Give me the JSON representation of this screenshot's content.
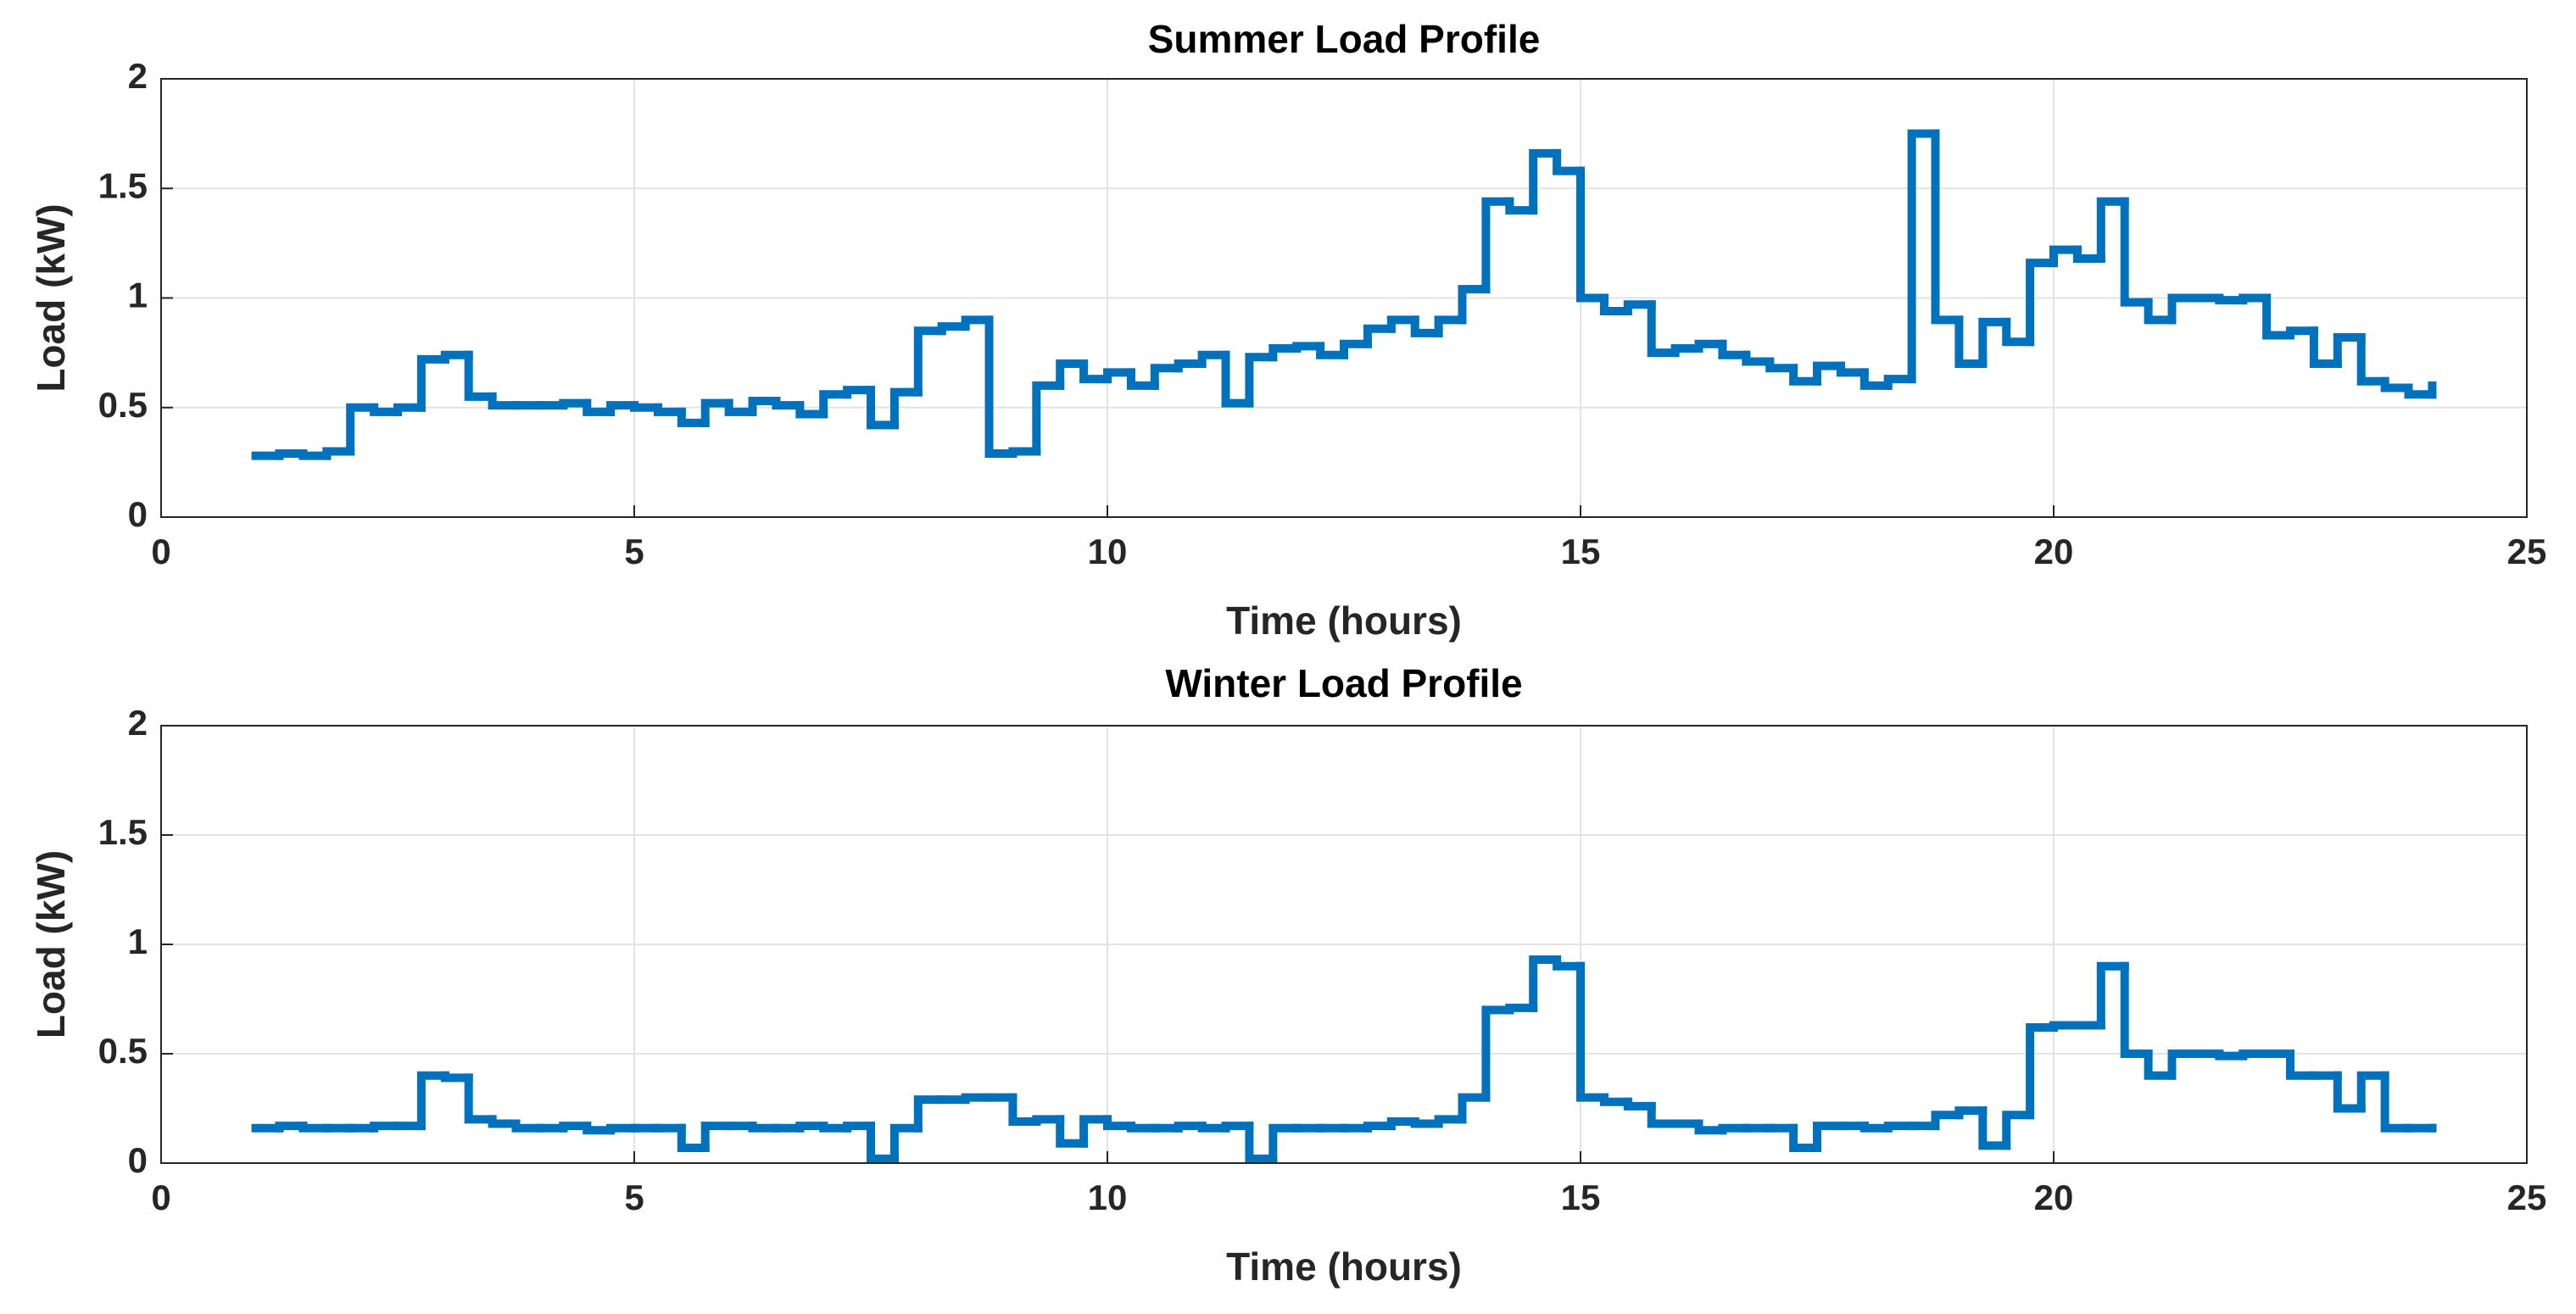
{
  "chart_data": [
    {
      "type": "step",
      "title": "Summer Load Profile",
      "xlabel": "Time (hours)",
      "ylabel": "Load (kW)",
      "x": [
        1,
        1.25,
        1.5,
        1.75,
        2,
        2.25,
        2.5,
        2.75,
        3,
        3.25,
        3.5,
        3.75,
        4,
        4.25,
        4.5,
        4.75,
        5,
        5.25,
        5.5,
        5.75,
        6,
        6.25,
        6.5,
        6.75,
        7,
        7.25,
        7.5,
        7.75,
        8,
        8.25,
        8.5,
        8.75,
        9,
        9.25,
        9.5,
        9.75,
        10,
        10.25,
        10.5,
        10.75,
        11,
        11.25,
        11.5,
        11.75,
        12,
        12.25,
        12.5,
        12.75,
        13,
        13.25,
        13.5,
        13.75,
        14,
        14.25,
        14.5,
        14.75,
        15,
        15.25,
        15.5,
        15.75,
        16,
        16.25,
        16.5,
        16.75,
        17,
        17.25,
        17.5,
        17.75,
        18,
        18.25,
        18.5,
        18.75,
        19,
        19.25,
        19.5,
        19.75,
        20,
        20.25,
        20.5,
        20.75,
        21,
        21.25,
        21.5,
        21.75,
        22,
        22.25,
        22.5,
        22.75,
        23,
        23.25,
        23.5,
        23.75,
        24
      ],
      "values": [
        0.28,
        0.29,
        0.28,
        0.3,
        0.5,
        0.48,
        0.5,
        0.72,
        0.74,
        0.55,
        0.51,
        0.51,
        0.51,
        0.52,
        0.48,
        0.51,
        0.5,
        0.48,
        0.43,
        0.52,
        0.48,
        0.53,
        0.51,
        0.47,
        0.56,
        0.58,
        0.42,
        0.57,
        0.85,
        0.87,
        0.9,
        0.29,
        0.3,
        0.6,
        0.7,
        0.63,
        0.66,
        0.6,
        0.68,
        0.7,
        0.74,
        0.52,
        0.73,
        0.77,
        0.78,
        0.74,
        0.79,
        0.86,
        0.9,
        0.84,
        0.9,
        1.04,
        1.44,
        1.4,
        1.66,
        1.58,
        1.0,
        0.94,
        0.97,
        0.75,
        0.77,
        0.79,
        0.74,
        0.71,
        0.68,
        0.62,
        0.69,
        0.66,
        0.6,
        0.63,
        1.75,
        0.9,
        0.7,
        0.89,
        0.8,
        1.16,
        1.22,
        1.18,
        1.44,
        0.98,
        0.9,
        1.0,
        1.0,
        0.99,
        1.0,
        0.83,
        0.85,
        0.7,
        0.82,
        0.62,
        0.59,
        0.56,
        0.6
      ],
      "color": "#0072bd",
      "xlim": [
        0,
        25
      ],
      "xticks": [
        0,
        5,
        10,
        15,
        20,
        25
      ],
      "ylim": [
        0,
        2
      ],
      "yticks": [
        0,
        0.5,
        1,
        1.5,
        2
      ],
      "grid": true
    },
    {
      "type": "step",
      "title": "Winter Load Profile",
      "xlabel": "Time (hours)",
      "ylabel": "Load (kW)",
      "x": [
        1,
        1.25,
        1.5,
        1.75,
        2,
        2.25,
        2.5,
        2.75,
        3,
        3.25,
        3.5,
        3.75,
        4,
        4.25,
        4.5,
        4.75,
        5,
        5.25,
        5.5,
        5.75,
        6,
        6.25,
        6.5,
        6.75,
        7,
        7.25,
        7.5,
        7.75,
        8,
        8.25,
        8.5,
        8.75,
        9,
        9.25,
        9.5,
        9.75,
        10,
        10.25,
        10.5,
        10.75,
        11,
        11.25,
        11.5,
        11.75,
        12,
        12.25,
        12.5,
        12.75,
        13,
        13.25,
        13.5,
        13.75,
        14,
        14.25,
        14.5,
        14.75,
        15,
        15.25,
        15.5,
        15.75,
        16,
        16.25,
        16.5,
        16.75,
        17,
        17.25,
        17.5,
        17.75,
        18,
        18.25,
        18.5,
        18.75,
        19,
        19.25,
        19.5,
        19.75,
        20,
        20.25,
        20.5,
        20.75,
        21,
        21.25,
        21.5,
        21.75,
        22,
        22.25,
        22.5,
        22.75,
        23,
        23.25,
        23.5,
        23.75,
        24
      ],
      "values": [
        0.16,
        0.17,
        0.16,
        0.16,
        0.16,
        0.17,
        0.17,
        0.4,
        0.39,
        0.2,
        0.18,
        0.16,
        0.16,
        0.17,
        0.15,
        0.16,
        0.16,
        0.16,
        0.07,
        0.17,
        0.17,
        0.16,
        0.16,
        0.17,
        0.16,
        0.17,
        0.02,
        0.16,
        0.29,
        0.29,
        0.3,
        0.3,
        0.19,
        0.2,
        0.09,
        0.2,
        0.17,
        0.16,
        0.16,
        0.17,
        0.16,
        0.17,
        0.02,
        0.16,
        0.16,
        0.16,
        0.16,
        0.17,
        0.19,
        0.18,
        0.2,
        0.3,
        0.7,
        0.71,
        0.93,
        0.9,
        0.3,
        0.28,
        0.26,
        0.18,
        0.18,
        0.15,
        0.16,
        0.16,
        0.16,
        0.07,
        0.17,
        0.17,
        0.16,
        0.17,
        0.17,
        0.22,
        0.24,
        0.08,
        0.22,
        0.62,
        0.63,
        0.63,
        0.9,
        0.5,
        0.4,
        0.5,
        0.5,
        0.49,
        0.5,
        0.5,
        0.4,
        0.4,
        0.25,
        0.4,
        0.16,
        0.16,
        0.16
      ],
      "color": "#0072bd",
      "xlim": [
        0,
        25
      ],
      "xticks": [
        0,
        5,
        10,
        15,
        20,
        25
      ],
      "ylim": [
        0,
        2
      ],
      "yticks": [
        0,
        0.5,
        1,
        1.5,
        2
      ],
      "grid": true
    }
  ]
}
